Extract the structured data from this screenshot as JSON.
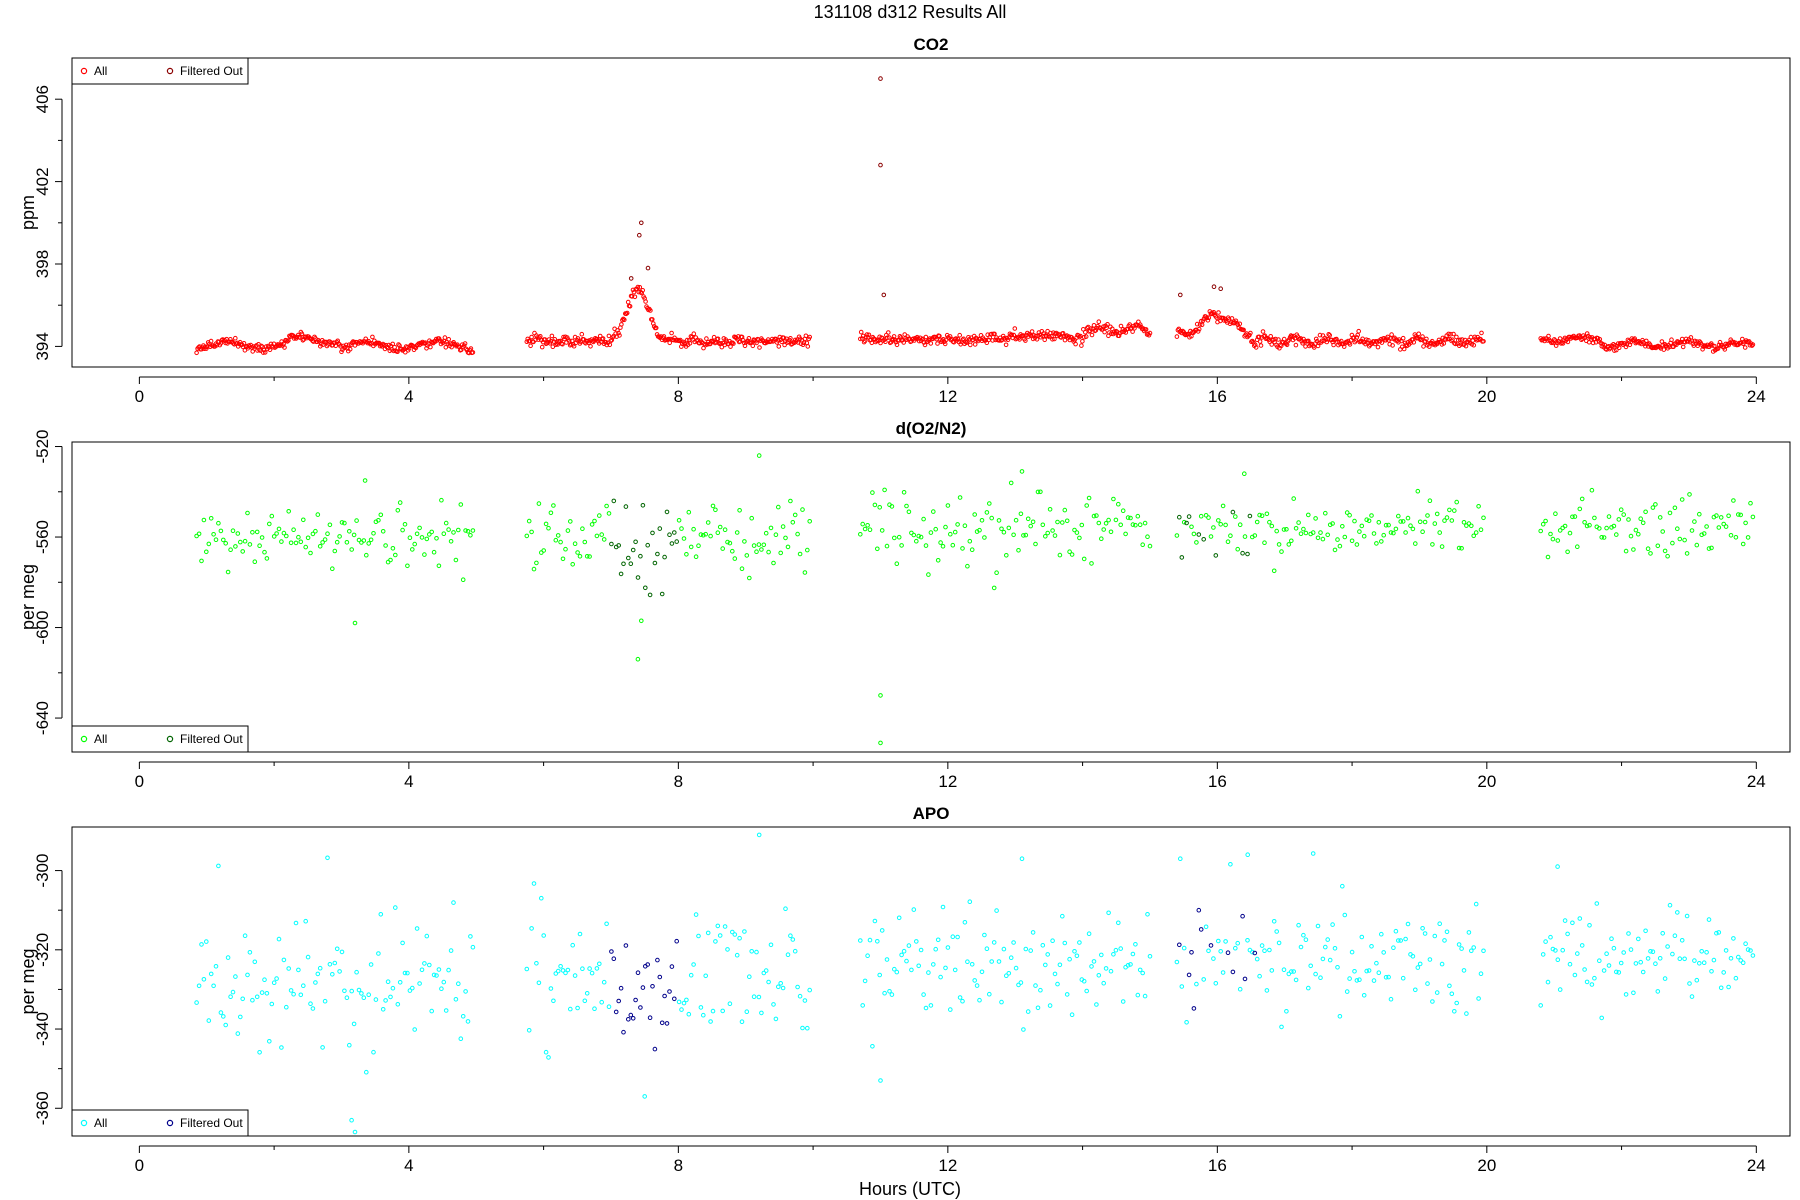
{
  "page_title": "131108   d312   Results All",
  "x_label": "Hours (UTC)",
  "chart_data": [
    {
      "type": "scatter",
      "title": "CO2",
      "ylabel": "ppm",
      "xlim": [
        -1,
        24.5
      ],
      "ylim": [
        393.0,
        408.0
      ],
      "xticks": [
        0,
        4,
        8,
        12,
        16,
        20,
        24
      ],
      "yticks": [
        394,
        398,
        402,
        406
      ],
      "grid": false,
      "legend": {
        "position": "top-left",
        "items": [
          {
            "label": "All",
            "color": "#ff0000"
          },
          {
            "label": "Filtered Out",
            "color": "#8b0000"
          }
        ]
      },
      "segments": [
        {
          "x_start": 0.85,
          "x_end": 4.95,
          "base": 394.05,
          "noise": 0.1,
          "pattern": "co2_night"
        },
        {
          "x_start": 5.75,
          "x_end": 9.95,
          "base": 394.25,
          "noise": 0.12,
          "pattern": "co2_morning"
        },
        {
          "x_start": 10.7,
          "x_end": 15.0,
          "base": 394.35,
          "noise": 0.12,
          "pattern": "co2_midday"
        },
        {
          "x_start": 15.4,
          "x_end": 19.95,
          "base": 394.25,
          "noise": 0.12,
          "pattern": "co2_afternoon"
        },
        {
          "x_start": 20.8,
          "x_end": 23.95,
          "base": 394.1,
          "noise": 0.1,
          "pattern": "co2_evening"
        }
      ],
      "highlighted_points": [
        {
          "x": 11.0,
          "y": 407.0
        },
        {
          "x": 11.0,
          "y": 402.8
        },
        {
          "x": 11.05,
          "y": 396.5
        },
        {
          "x": 7.45,
          "y": 400.0
        },
        {
          "x": 7.42,
          "y": 399.4
        },
        {
          "x": 7.3,
          "y": 397.3
        },
        {
          "x": 7.55,
          "y": 397.8
        },
        {
          "x": 15.95,
          "y": 396.9
        },
        {
          "x": 16.05,
          "y": 396.8
        },
        {
          "x": 15.45,
          "y": 396.5
        }
      ]
    },
    {
      "type": "scatter",
      "title": "d(O2/N2)",
      "ylabel": "per meg",
      "xlim": [
        -1,
        24.5
      ],
      "ylim": [
        -655,
        -518
      ],
      "xticks": [
        0,
        4,
        8,
        12,
        16,
        20,
        24
      ],
      "yticks": [
        -520,
        -560,
        -600,
        -640
      ],
      "grid": false,
      "legend": {
        "position": "bottom-left",
        "items": [
          {
            "label": "All",
            "color": "#00ff00"
          },
          {
            "label": "Filtered Out",
            "color": "#006400"
          }
        ]
      },
      "segments": [
        {
          "x_start": 0.85,
          "x_end": 4.95,
          "base": -561,
          "noise": 7,
          "pattern": "flat"
        },
        {
          "x_start": 5.75,
          "x_end": 9.95,
          "base": -560,
          "noise": 8,
          "pattern": "o2_dip"
        },
        {
          "x_start": 10.7,
          "x_end": 15.0,
          "base": -556,
          "noise": 7,
          "pattern": "flat"
        },
        {
          "x_start": 15.4,
          "x_end": 19.95,
          "base": -557,
          "noise": 6,
          "pattern": "flat"
        },
        {
          "x_start": 20.8,
          "x_end": 23.95,
          "base": -556,
          "noise": 6,
          "pattern": "flat"
        }
      ],
      "highlighted_points": [
        {
          "x": 9.2,
          "y": -524
        },
        {
          "x": 7.4,
          "y": -614
        },
        {
          "x": 7.45,
          "y": -597
        },
        {
          "x": 11.0,
          "y": -630
        },
        {
          "x": 11.0,
          "y": -651
        },
        {
          "x": 3.2,
          "y": -598
        },
        {
          "x": 13.1,
          "y": -531
        },
        {
          "x": 16.4,
          "y": -532
        },
        {
          "x": 3.35,
          "y": -535
        }
      ]
    },
    {
      "type": "scatter",
      "title": "APO",
      "ylabel": "per meg",
      "xlim": [
        -1,
        24.5
      ],
      "ylim": [
        -367,
        -289
      ],
      "xticks": [
        0,
        4,
        8,
        12,
        16,
        20,
        24
      ],
      "yticks": [
        -300,
        -320,
        -340,
        -360
      ],
      "grid": false,
      "legend": {
        "position": "bottom-left",
        "items": [
          {
            "label": "All",
            "color": "#00ffff"
          },
          {
            "label": "Filtered Out",
            "color": "#00008b"
          }
        ]
      },
      "segments": [
        {
          "x_start": 0.85,
          "x_end": 4.95,
          "base": -329,
          "noise": 8,
          "pattern": "flat"
        },
        {
          "x_start": 5.75,
          "x_end": 9.95,
          "base": -326,
          "noise": 8,
          "pattern": "apo_dip"
        },
        {
          "x_start": 10.7,
          "x_end": 15.0,
          "base": -323,
          "noise": 7,
          "pattern": "flat"
        },
        {
          "x_start": 15.4,
          "x_end": 19.95,
          "base": -322,
          "noise": 6,
          "pattern": "flat"
        },
        {
          "x_start": 20.8,
          "x_end": 23.95,
          "base": -322,
          "noise": 6,
          "pattern": "flat"
        }
      ],
      "highlighted_points": [
        {
          "x": 9.2,
          "y": -291
        },
        {
          "x": 3.15,
          "y": -363
        },
        {
          "x": 3.2,
          "y": -366
        },
        {
          "x": 7.5,
          "y": -357
        },
        {
          "x": 11.0,
          "y": -353
        },
        {
          "x": 15.45,
          "y": -297
        },
        {
          "x": 16.45,
          "y": -296
        },
        {
          "x": 13.1,
          "y": -297
        },
        {
          "x": 21.05,
          "y": -299
        }
      ]
    }
  ]
}
